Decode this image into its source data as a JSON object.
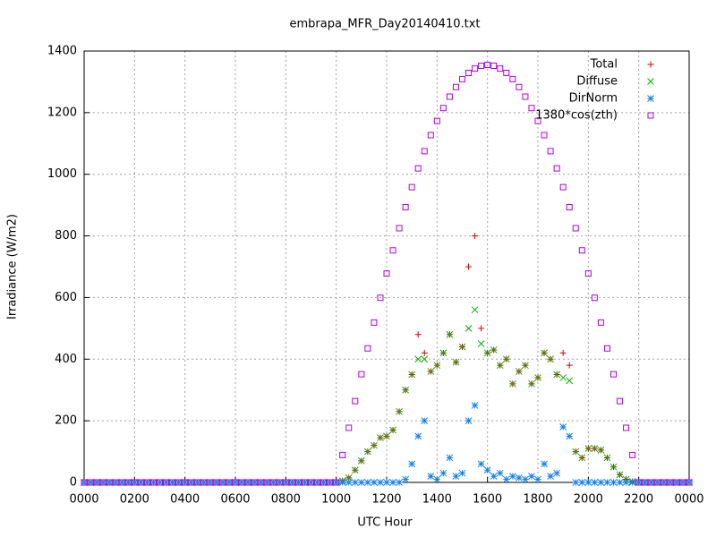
{
  "chart_data": {
    "type": "scatter",
    "title": "embrapa_MFR_Day20140410.txt",
    "xlabel": "UTC Hour",
    "ylabel": "Irradiance (W/m2)",
    "xlim": [
      0,
      24
    ],
    "ylim": [
      0,
      1400
    ],
    "xticks": [
      {
        "value": 0,
        "label": "0000"
      },
      {
        "value": 2,
        "label": "0200"
      },
      {
        "value": 4,
        "label": "0400"
      },
      {
        "value": 6,
        "label": "0600"
      },
      {
        "value": 8,
        "label": "0800"
      },
      {
        "value": 10,
        "label": "1000"
      },
      {
        "value": 12,
        "label": "1200"
      },
      {
        "value": 14,
        "label": "1400"
      },
      {
        "value": 16,
        "label": "1600"
      },
      {
        "value": 18,
        "label": "1800"
      },
      {
        "value": 20,
        "label": "2000"
      },
      {
        "value": 22,
        "label": "2200"
      },
      {
        "value": 24,
        "label": "0000"
      }
    ],
    "yticks": [
      0,
      200,
      400,
      600,
      800,
      1000,
      1200,
      1400
    ],
    "grid": true,
    "legend": "upper right",
    "x": [
      0,
      0.25,
      0.5,
      0.75,
      1,
      1.25,
      1.5,
      1.75,
      2,
      2.25,
      2.5,
      2.75,
      3,
      3.25,
      3.5,
      3.75,
      4,
      4.25,
      4.5,
      4.75,
      5,
      5.25,
      5.5,
      5.75,
      6,
      6.25,
      6.5,
      6.75,
      7,
      7.25,
      7.5,
      7.75,
      8,
      8.25,
      8.5,
      8.75,
      9,
      9.25,
      9.5,
      9.75,
      10,
      10.25,
      10.5,
      10.75,
      11,
      11.25,
      11.5,
      11.75,
      12,
      12.25,
      12.5,
      12.75,
      13,
      13.25,
      13.5,
      13.75,
      14,
      14.25,
      14.5,
      14.75,
      15,
      15.25,
      15.5,
      15.75,
      16,
      16.25,
      16.5,
      16.75,
      17,
      17.25,
      17.5,
      17.75,
      18,
      18.25,
      18.5,
      18.75,
      19,
      19.25,
      19.5,
      19.75,
      20,
      20.25,
      20.5,
      20.75,
      21,
      21.25,
      21.5,
      21.75,
      22,
      22.25,
      22.5,
      22.75,
      23,
      23.25,
      23.5,
      23.75,
      24
    ],
    "series": [
      {
        "name": "Total",
        "color": "#e00000",
        "marker": "plus",
        "values": [
          0,
          0,
          0,
          0,
          0,
          0,
          0,
          0,
          0,
          0,
          0,
          0,
          0,
          0,
          0,
          0,
          0,
          0,
          0,
          0,
          0,
          0,
          0,
          0,
          0,
          0,
          0,
          0,
          0,
          0,
          0,
          0,
          0,
          0,
          0,
          0,
          0,
          0,
          0,
          0,
          0,
          5,
          15,
          40,
          70,
          100,
          120,
          145,
          150,
          170,
          230,
          300,
          350,
          480,
          420,
          360,
          380,
          420,
          480,
          390,
          440,
          700,
          800,
          500,
          420,
          430,
          380,
          400,
          320,
          360,
          380,
          320,
          340,
          420,
          400,
          350,
          420,
          380,
          100,
          80,
          110,
          110,
          105,
          80,
          50,
          25,
          10,
          3,
          0,
          0,
          0,
          0,
          0,
          0,
          0,
          0,
          0
        ]
      },
      {
        "name": "Diffuse",
        "color": "#00b000",
        "marker": "cross",
        "values": [
          0,
          0,
          0,
          0,
          0,
          0,
          0,
          0,
          0,
          0,
          0,
          0,
          0,
          0,
          0,
          0,
          0,
          0,
          0,
          0,
          0,
          0,
          0,
          0,
          0,
          0,
          0,
          0,
          0,
          0,
          0,
          0,
          0,
          0,
          0,
          0,
          0,
          0,
          0,
          0,
          0,
          5,
          15,
          40,
          70,
          100,
          120,
          145,
          150,
          170,
          230,
          300,
          350,
          400,
          400,
          360,
          380,
          420,
          480,
          390,
          440,
          500,
          560,
          450,
          420,
          430,
          380,
          400,
          320,
          360,
          380,
          320,
          340,
          420,
          400,
          350,
          340,
          330,
          100,
          80,
          110,
          110,
          105,
          80,
          50,
          25,
          10,
          3,
          0,
          0,
          0,
          0,
          0,
          0,
          0,
          0,
          0
        ]
      },
      {
        "name": "DirNorm",
        "color": "#1080f0",
        "marker": "star",
        "values": [
          0,
          0,
          0,
          0,
          0,
          0,
          0,
          0,
          0,
          0,
          0,
          0,
          0,
          0,
          0,
          0,
          0,
          0,
          0,
          0,
          0,
          0,
          0,
          0,
          0,
          0,
          0,
          0,
          0,
          0,
          0,
          0,
          0,
          0,
          0,
          0,
          0,
          0,
          0,
          0,
          0,
          0,
          0,
          0,
          0,
          0,
          0,
          0,
          0,
          0,
          0,
          10,
          60,
          150,
          200,
          20,
          10,
          30,
          80,
          20,
          30,
          200,
          250,
          60,
          40,
          20,
          30,
          10,
          20,
          15,
          10,
          20,
          10,
          60,
          20,
          30,
          180,
          150,
          0,
          0,
          0,
          0,
          0,
          0,
          0,
          0,
          0,
          0,
          0,
          0,
          0,
          0,
          0,
          0,
          0,
          0,
          0
        ]
      },
      {
        "name": "1380*cos(zth)",
        "color": "#b000e0",
        "marker": "square",
        "values": [
          0,
          0,
          0,
          0,
          0,
          0,
          0,
          0,
          0,
          0,
          0,
          0,
          0,
          0,
          0,
          0,
          0,
          0,
          0,
          0,
          0,
          0,
          0,
          0,
          0,
          0,
          0,
          0,
          0,
          0,
          0,
          0,
          0,
          0,
          0,
          0,
          0,
          0,
          0,
          0,
          0,
          89,
          177,
          264,
          351,
          435,
          519,
          599,
          678,
          753,
          825,
          893,
          958,
          1019,
          1075,
          1127,
          1173,
          1215,
          1252,
          1283,
          1309,
          1329,
          1343,
          1352,
          1355,
          1352,
          1343,
          1329,
          1309,
          1283,
          1252,
          1215,
          1173,
          1127,
          1075,
          1019,
          958,
          893,
          825,
          753,
          678,
          599,
          519,
          435,
          351,
          264,
          177,
          89,
          0,
          0,
          0,
          0,
          0,
          0,
          0,
          0,
          0
        ]
      }
    ]
  }
}
